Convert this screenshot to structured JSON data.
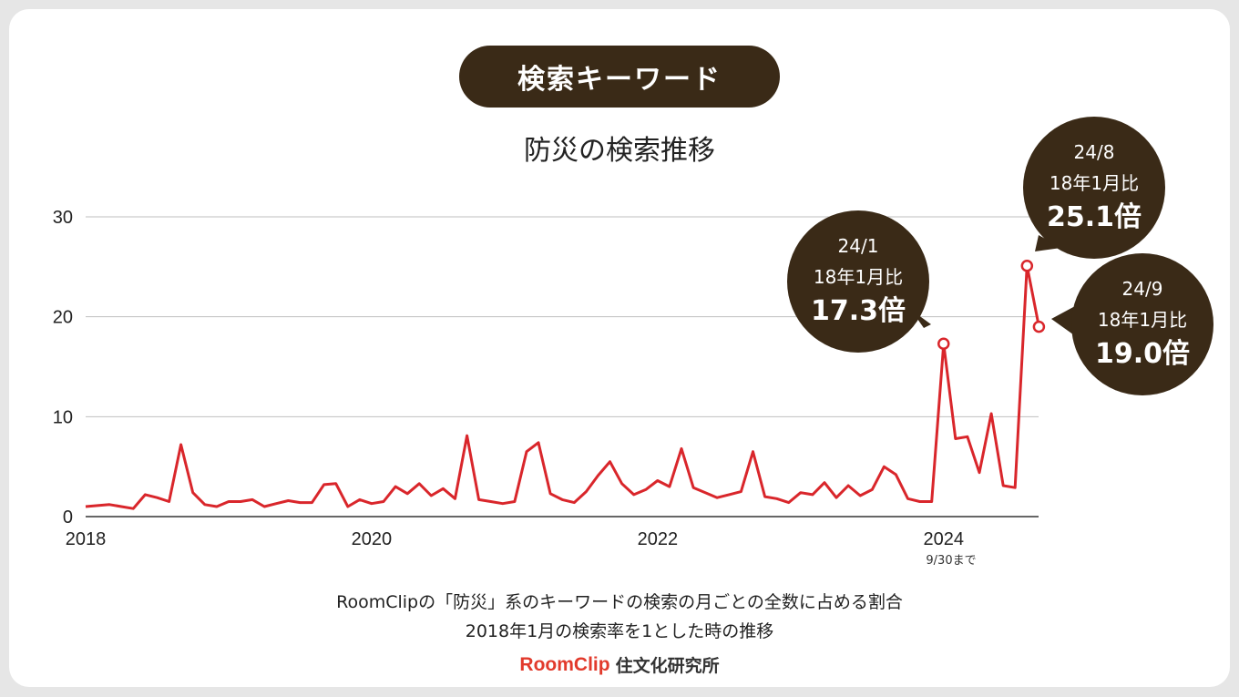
{
  "header": {
    "pill_label": "検索キーワード",
    "chart_title": "防災の検索推移"
  },
  "footnote": "9/30まで",
  "captions": {
    "line1": "RoomClipの「防災」系のキーワードの検索の月ごとの全数に占める割合",
    "line2": "2018年1月の検索率を1とした時の推移"
  },
  "logo": {
    "brand": "RoomClip",
    "sub": "住文化研究所"
  },
  "colors": {
    "line": "#d9262b",
    "bubble": "#3a2a17",
    "grid": "#bfbfbf"
  },
  "chart_data": {
    "type": "line",
    "title": "防災の検索推移",
    "xlabel": "",
    "ylabel": "",
    "x_tick_labels": [
      "2018",
      "2020",
      "2022",
      "2024"
    ],
    "x_ticks": [
      "2018-01",
      "2020-01",
      "2022-01",
      "2024-01"
    ],
    "y_ticks": [
      0,
      10,
      20,
      30
    ],
    "ylim": [
      0,
      33
    ],
    "xlim": [
      "2018-01",
      "2024-09"
    ],
    "grid": true,
    "series": [
      {
        "values": [
          1.0,
          1.1,
          1.2,
          1.0,
          0.8,
          2.2,
          1.9,
          1.5,
          7.2,
          2.4,
          1.2,
          1.0,
          1.5,
          1.5,
          1.7,
          1.0,
          1.3,
          1.6,
          1.4,
          1.4,
          3.2,
          3.3,
          1.0,
          1.7,
          1.3,
          1.5,
          3.0,
          2.3,
          3.3,
          2.1,
          2.8,
          1.8,
          8.1,
          1.7,
          1.5,
          1.3,
          1.5,
          6.5,
          7.4,
          2.3,
          1.7,
          1.4,
          2.5,
          4.1,
          5.5,
          3.3,
          2.2,
          2.7,
          3.6,
          3.0,
          6.8,
          2.9,
          2.4,
          1.9,
          2.2,
          2.5,
          6.5,
          2.0,
          1.8,
          1.4,
          2.4,
          2.2,
          3.4,
          1.9,
          3.1,
          2.1,
          2.7,
          5.0,
          4.2,
          1.8,
          1.5,
          1.5,
          17.3,
          7.8,
          8.0,
          4.4,
          10.3,
          3.1,
          2.9,
          25.1,
          19.0
        ]
      }
    ],
    "annotations": [
      {
        "date": "24/1",
        "line2": "18年1月比",
        "value_label": "17.3倍",
        "value": 17.3
      },
      {
        "date": "24/8",
        "line2": "18年1月比",
        "value_label": "25.1倍",
        "value": 25.1
      },
      {
        "date": "24/9",
        "line2": "18年1月比",
        "value_label": "19.0倍",
        "value": 19.0
      }
    ]
  }
}
